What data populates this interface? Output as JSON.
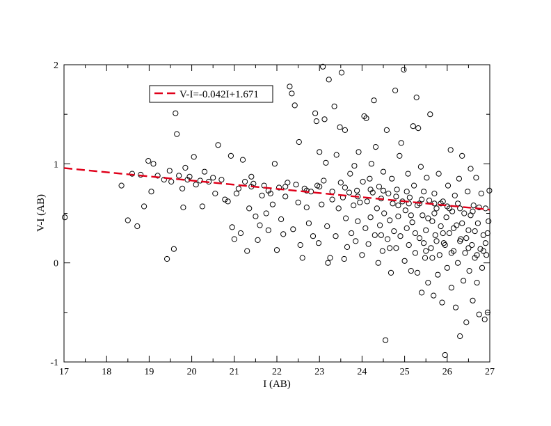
{
  "chart_data": {
    "type": "scatter",
    "title": "",
    "xlabel": "I (AB)",
    "ylabel": "V-I (AB)",
    "xlim": [
      17,
      27
    ],
    "ylim": [
      -1,
      2
    ],
    "xticks": [
      "17",
      "18",
      "19",
      "20",
      "21",
      "22",
      "23",
      "24",
      "25",
      "26",
      "27"
    ],
    "yticks": [
      "-1",
      "0",
      "1",
      "2"
    ],
    "grid": false,
    "legend_position": "top-left",
    "series": [
      {
        "type": "scatter",
        "marker": "open-circle",
        "color": "#000000",
        "note_points": "approximate sample of visible points",
        "points": [
          [
            17.02,
            0.46
          ],
          [
            18.35,
            0.78
          ],
          [
            18.5,
            0.43
          ],
          [
            18.6,
            0.9
          ],
          [
            18.72,
            0.37
          ],
          [
            18.8,
            0.89
          ],
          [
            18.88,
            0.57
          ],
          [
            18.98,
            1.03
          ],
          [
            19.05,
            0.72
          ],
          [
            19.1,
            1.0
          ],
          [
            19.2,
            0.88
          ],
          [
            19.35,
            0.84
          ],
          [
            19.42,
            0.04
          ],
          [
            19.48,
            0.93
          ],
          [
            19.52,
            0.82
          ],
          [
            19.58,
            0.14
          ],
          [
            19.62,
            1.51
          ],
          [
            19.65,
            1.3
          ],
          [
            19.7,
            0.88
          ],
          [
            19.78,
            0.75
          ],
          [
            19.8,
            0.56
          ],
          [
            19.85,
            0.96
          ],
          [
            19.9,
            0.84
          ],
          [
            19.95,
            0.87
          ],
          [
            20.05,
            1.07
          ],
          [
            20.1,
            0.79
          ],
          [
            20.2,
            0.83
          ],
          [
            20.25,
            0.57
          ],
          [
            20.3,
            0.92
          ],
          [
            20.4,
            0.82
          ],
          [
            20.5,
            0.86
          ],
          [
            20.55,
            0.7
          ],
          [
            20.62,
            1.19
          ],
          [
            20.7,
            0.84
          ],
          [
            20.78,
            0.64
          ],
          [
            20.85,
            0.62
          ],
          [
            20.92,
            1.08
          ],
          [
            20.95,
            0.36
          ],
          [
            21.0,
            0.24
          ],
          [
            21.05,
            0.7
          ],
          [
            21.1,
            0.75
          ],
          [
            21.15,
            0.3
          ],
          [
            21.2,
            1.04
          ],
          [
            21.25,
            0.82
          ],
          [
            21.3,
            0.12
          ],
          [
            21.35,
            0.55
          ],
          [
            21.4,
            0.87
          ],
          [
            21.45,
            0.8
          ],
          [
            21.5,
            0.47
          ],
          [
            21.55,
            0.23
          ],
          [
            21.6,
            0.38
          ],
          [
            21.65,
            0.68
          ],
          [
            21.7,
            0.78
          ],
          [
            21.75,
            0.5
          ],
          [
            21.8,
            0.33
          ],
          [
            21.85,
            0.7
          ],
          [
            21.9,
            0.59
          ],
          [
            21.95,
            1.0
          ],
          [
            22.0,
            0.13
          ],
          [
            22.05,
            0.76
          ],
          [
            22.1,
            0.44
          ],
          [
            22.15,
            0.29
          ],
          [
            22.2,
            0.67
          ],
          [
            22.25,
            0.81
          ],
          [
            22.3,
            1.78
          ],
          [
            22.35,
            1.71
          ],
          [
            22.38,
            0.34
          ],
          [
            22.42,
            1.59
          ],
          [
            22.45,
            0.79
          ],
          [
            22.5,
            0.61
          ],
          [
            22.52,
            1.22
          ],
          [
            22.55,
            0.18
          ],
          [
            22.6,
            0.05
          ],
          [
            22.65,
            0.75
          ],
          [
            22.7,
            0.56
          ],
          [
            22.75,
            0.4
          ],
          [
            22.8,
            0.72
          ],
          [
            22.85,
            0.27
          ],
          [
            22.9,
            1.51
          ],
          [
            22.93,
            1.43
          ],
          [
            22.95,
            0.78
          ],
          [
            22.98,
            0.2
          ],
          [
            23.0,
            1.12
          ],
          [
            23.05,
            0.59
          ],
          [
            23.08,
            1.98
          ],
          [
            23.1,
            0.83
          ],
          [
            23.12,
            1.45
          ],
          [
            23.15,
            1.01
          ],
          [
            23.18,
            0.37
          ],
          [
            23.2,
            0.0
          ],
          [
            23.22,
            1.85
          ],
          [
            23.25,
            0.05
          ],
          [
            23.3,
            0.72
          ],
          [
            23.35,
            1.58
          ],
          [
            23.38,
            0.27
          ],
          [
            23.4,
            1.09
          ],
          [
            23.45,
            0.55
          ],
          [
            23.48,
            1.37
          ],
          [
            23.5,
            0.81
          ],
          [
            23.52,
            1.92
          ],
          [
            23.55,
            0.66
          ],
          [
            23.58,
            0.04
          ],
          [
            23.6,
            1.34
          ],
          [
            23.62,
            0.45
          ],
          [
            23.65,
            0.16
          ],
          [
            23.7,
            0.71
          ],
          [
            23.72,
            0.9
          ],
          [
            23.75,
            0.3
          ],
          [
            23.8,
            0.58
          ],
          [
            23.82,
            0.98
          ],
          [
            23.85,
            0.22
          ],
          [
            23.88,
            0.73
          ],
          [
            23.9,
            0.42
          ],
          [
            23.92,
            1.12
          ],
          [
            23.95,
            0.61
          ],
          [
            24.0,
            0.08
          ],
          [
            24.02,
            0.82
          ],
          [
            24.05,
            1.48
          ],
          [
            24.08,
            0.35
          ],
          [
            24.1,
            1.46
          ],
          [
            24.12,
            0.62
          ],
          [
            24.15,
            0.19
          ],
          [
            24.18,
            0.85
          ],
          [
            24.2,
            0.46
          ],
          [
            24.22,
            1.0
          ],
          [
            24.25,
            0.71
          ],
          [
            24.28,
            1.64
          ],
          [
            24.3,
            0.28
          ],
          [
            24.32,
            1.17
          ],
          [
            24.35,
            0.55
          ],
          [
            24.38,
            0.0
          ],
          [
            24.4,
            0.77
          ],
          [
            24.42,
            0.38
          ],
          [
            24.45,
            0.65
          ],
          [
            24.48,
            0.12
          ],
          [
            24.5,
            0.92
          ],
          [
            24.52,
            0.5
          ],
          [
            24.55,
            -0.78
          ],
          [
            24.58,
            1.34
          ],
          [
            24.6,
            0.24
          ],
          [
            24.62,
            0.7
          ],
          [
            24.65,
            0.43
          ],
          [
            24.68,
            -0.1
          ],
          [
            24.7,
            0.85
          ],
          [
            24.72,
            0.6
          ],
          [
            24.75,
            0.32
          ],
          [
            24.78,
            1.74
          ],
          [
            24.8,
            0.15
          ],
          [
            24.82,
            0.74
          ],
          [
            24.85,
            0.47
          ],
          [
            24.88,
            1.08
          ],
          [
            24.9,
            0.27
          ],
          [
            24.92,
            1.21
          ],
          [
            24.95,
            0.62
          ],
          [
            24.98,
            1.95
          ],
          [
            25.0,
            0.02
          ],
          [
            25.02,
            0.53
          ],
          [
            25.05,
            0.35
          ],
          [
            25.08,
            0.9
          ],
          [
            25.1,
            0.18
          ],
          [
            25.12,
            0.66
          ],
          [
            25.15,
            -0.08
          ],
          [
            25.18,
            0.41
          ],
          [
            25.2,
            1.38
          ],
          [
            25.22,
            0.78
          ],
          [
            25.25,
            0.1
          ],
          [
            25.28,
            1.67
          ],
          [
            25.3,
            0.58
          ],
          [
            25.32,
            1.36
          ],
          [
            25.35,
            0.25
          ],
          [
            25.38,
            0.97
          ],
          [
            25.4,
            -0.3
          ],
          [
            25.42,
            0.48
          ],
          [
            25.45,
            0.72
          ],
          [
            25.48,
            0.05
          ],
          [
            25.5,
            0.33
          ],
          [
            25.52,
            0.86
          ],
          [
            25.55,
            -0.2
          ],
          [
            25.58,
            0.63
          ],
          [
            25.6,
            1.5
          ],
          [
            25.62,
            0.15
          ],
          [
            25.65,
            0.42
          ],
          [
            25.68,
            -0.33
          ],
          [
            25.7,
            0.7
          ],
          [
            25.72,
            0.28
          ],
          [
            25.75,
            0.55
          ],
          [
            25.78,
            -0.12
          ],
          [
            25.8,
            0.9
          ],
          [
            25.82,
            0.08
          ],
          [
            25.85,
            0.37
          ],
          [
            25.88,
            -0.4
          ],
          [
            25.9,
            0.62
          ],
          [
            25.92,
            0.2
          ],
          [
            25.95,
            -0.93
          ],
          [
            25.98,
            0.46
          ],
          [
            26.0,
            -0.05
          ],
          [
            26.02,
            0.78
          ],
          [
            26.05,
            0.3
          ],
          [
            26.08,
            1.14
          ],
          [
            26.1,
            -0.25
          ],
          [
            26.12,
            0.52
          ],
          [
            26.15,
            0.12
          ],
          [
            26.18,
            0.68
          ],
          [
            26.2,
            -0.45
          ],
          [
            26.22,
            0.38
          ],
          [
            26.25,
            0.0
          ],
          [
            26.28,
            0.85
          ],
          [
            26.3,
            -0.74
          ],
          [
            26.32,
            0.24
          ],
          [
            26.35,
            1.08
          ],
          [
            26.38,
            -0.18
          ],
          [
            26.4,
            0.5
          ],
          [
            26.42,
            0.1
          ],
          [
            26.45,
            -0.6
          ],
          [
            26.48,
            0.72
          ],
          [
            26.5,
            0.33
          ],
          [
            26.52,
            -0.08
          ],
          [
            26.55,
            0.95
          ],
          [
            26.58,
            0.18
          ],
          [
            26.6,
            -0.38
          ],
          [
            26.62,
            0.58
          ],
          [
            26.65,
            0.05
          ],
          [
            26.68,
            0.86
          ],
          [
            26.7,
            -0.2
          ],
          [
            26.72,
            0.4
          ],
          [
            26.75,
            -0.52
          ],
          [
            26.78,
            0.14
          ],
          [
            26.8,
            0.7
          ],
          [
            26.82,
            -0.05
          ],
          [
            26.85,
            0.28
          ],
          [
            26.88,
            -0.57
          ],
          [
            26.9,
            0.55
          ],
          [
            26.92,
            0.08
          ],
          [
            26.95,
            -0.5
          ],
          [
            26.97,
            0.42
          ],
          [
            26.99,
            0.73
          ],
          [
            25.25,
            0.3
          ],
          [
            25.35,
            0.6
          ],
          [
            25.45,
            0.2
          ],
          [
            25.55,
            0.45
          ],
          [
            25.65,
            0.05
          ],
          [
            25.75,
            0.22
          ],
          [
            25.85,
            0.6
          ],
          [
            25.95,
            0.18
          ],
          [
            26.05,
            0.55
          ],
          [
            26.15,
            0.35
          ],
          [
            26.25,
            0.6
          ],
          [
            26.35,
            0.4
          ],
          [
            26.45,
            0.25
          ],
          [
            26.55,
            0.48
          ],
          [
            26.65,
            0.32
          ],
          [
            26.75,
            0.56
          ],
          [
            26.85,
            0.12
          ],
          [
            26.95,
            0.3
          ],
          [
            24.45,
            0.28
          ],
          [
            24.65,
            0.15
          ],
          [
            24.85,
            0.58
          ],
          [
            25.05,
            0.72
          ],
          [
            25.15,
            0.48
          ],
          [
            25.3,
            -0.1
          ],
          [
            25.5,
            0.12
          ],
          [
            25.7,
            0.5
          ],
          [
            25.9,
            0.3
          ],
          [
            26.1,
            0.1
          ],
          [
            26.3,
            0.22
          ],
          [
            26.5,
            0.15
          ],
          [
            26.7,
            0.08
          ],
          [
            26.9,
            0.2
          ],
          [
            23.6,
            0.76
          ],
          [
            23.9,
            0.67
          ],
          [
            24.2,
            0.74
          ],
          [
            24.5,
            0.73
          ],
          [
            24.8,
            0.67
          ],
          [
            25.1,
            0.6
          ],
          [
            25.4,
            0.64
          ],
          [
            25.7,
            0.6
          ],
          [
            26.0,
            0.57
          ],
          [
            26.3,
            0.55
          ],
          [
            26.6,
            0.52
          ],
          [
            22.7,
            0.73
          ],
          [
            23.0,
            0.77
          ],
          [
            23.3,
            0.64
          ],
          [
            22.2,
            0.77
          ],
          [
            21.8,
            0.73
          ],
          [
            21.4,
            0.77
          ]
        ]
      },
      {
        "name": "V-I=-0.042I+1.671",
        "type": "line",
        "style": "dashed",
        "color": "#e0001a",
        "slope": -0.042,
        "intercept": 1.671,
        "x_range": [
          17,
          27
        ]
      }
    ]
  }
}
